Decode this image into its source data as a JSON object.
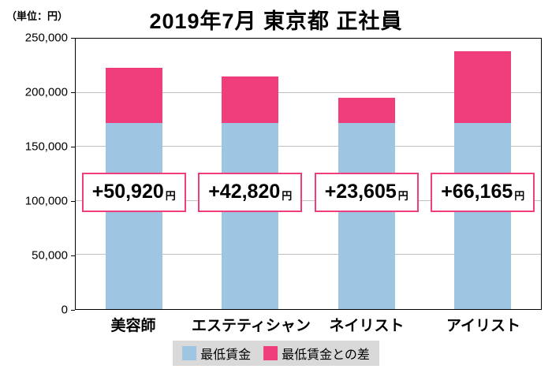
{
  "chart_data": {
    "type": "bar",
    "stacked": true,
    "title": "2019年7月 東京都 正社員",
    "unit_label": "（単位：円）",
    "categories": [
      "美容師",
      "エステティシャン",
      "ネイリスト",
      "アイリスト"
    ],
    "series": [
      {
        "name": "最低賃金",
        "color": "#9ec6e2",
        "values": [
          172000,
          172000,
          172000,
          172000
        ]
      },
      {
        "name": "最低賃金との差",
        "color": "#f03e7d",
        "values": [
          50920,
          42820,
          23605,
          66165
        ]
      }
    ],
    "bar_labels": [
      {
        "value": "+50,920",
        "unit": "円"
      },
      {
        "value": "+42,820",
        "unit": "円"
      },
      {
        "value": "+23,605",
        "unit": "円"
      },
      {
        "value": "+66,165",
        "unit": "円"
      }
    ],
    "totals": [
      222920,
      214820,
      195605,
      238165
    ],
    "ylim": [
      0,
      250000
    ],
    "ytick_interval": 50000,
    "ytick_labels": [
      "0",
      "50,000",
      "100,000",
      "150,000",
      "200,000",
      "250,000"
    ],
    "grid": true,
    "legend_position": "bottom"
  }
}
